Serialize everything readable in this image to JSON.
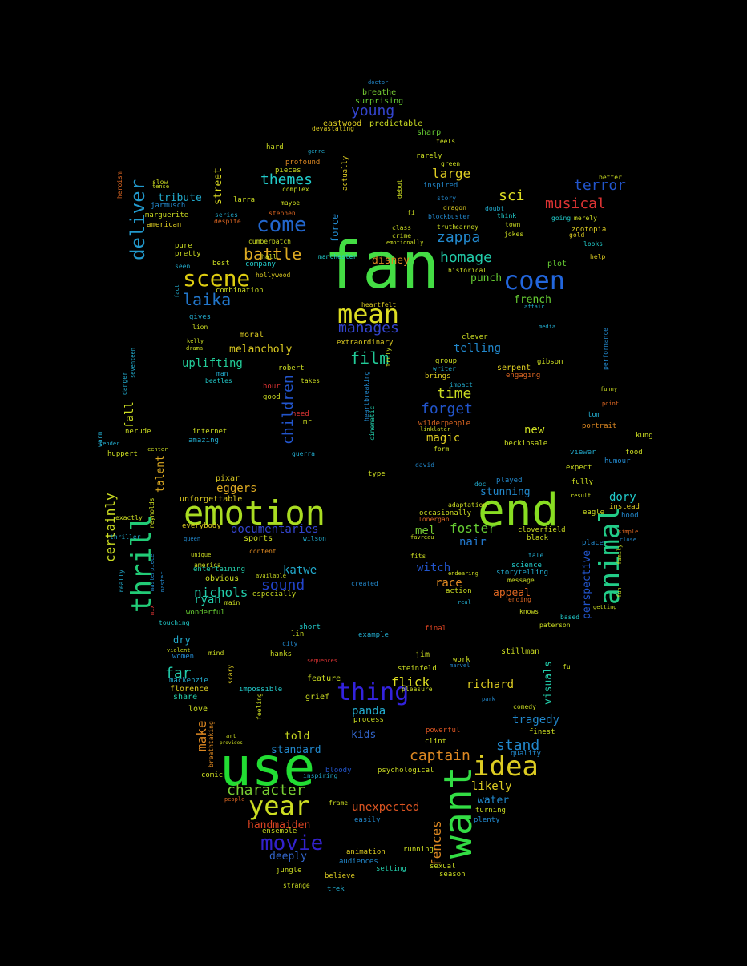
{
  "words": [
    {
      "text": "fan",
      "color": "#44dd44"
    },
    {
      "text": "use",
      "color": "#22dd33"
    },
    {
      "text": "emotion",
      "color": "#aadd22"
    },
    {
      "text": "end",
      "color": "#88dd22"
    },
    {
      "text": "want",
      "color": "#33dd44"
    },
    {
      "text": "idea",
      "color": "#ddcc22"
    },
    {
      "text": "thrill",
      "color": "#22cc77"
    },
    {
      "text": "animal",
      "color": "#22cc88"
    },
    {
      "text": "mean",
      "color": "#dddd22"
    },
    {
      "text": "coen",
      "color": "#2266dd"
    },
    {
      "text": "thing",
      "color": "#3322dd"
    },
    {
      "text": "year",
      "color": "#ccdd22"
    },
    {
      "text": "movie",
      "color": "#3322cc"
    },
    {
      "text": "scene",
      "color": "#ddcc11"
    },
    {
      "text": "come",
      "color": "#2266cc"
    },
    {
      "text": "deliver",
      "color": "#2299cc"
    },
    {
      "text": "character",
      "color": "#77cc33"
    },
    {
      "text": "film",
      "color": "#22cc99"
    },
    {
      "text": "battle",
      "color": "#ddaa22"
    },
    {
      "text": "laika",
      "color": "#2277cc"
    },
    {
      "text": "manages",
      "color": "#3344cc"
    },
    {
      "text": "themes",
      "color": "#22cccc"
    },
    {
      "text": "musical",
      "color": "#dd3333"
    },
    {
      "text": "terror",
      "color": "#2255cc"
    },
    {
      "text": "homage",
      "color": "#22ccaa"
    },
    {
      "text": "zappa",
      "color": "#2288cc"
    },
    {
      "text": "sci",
      "color": "#dddd22"
    },
    {
      "text": "large",
      "color": "#ddcc22"
    },
    {
      "text": "young",
      "color": "#3344cc"
    },
    {
      "text": "forget",
      "color": "#2255cc"
    },
    {
      "text": "time",
      "color": "#ccdd22"
    },
    {
      "text": "children",
      "color": "#2255cc"
    },
    {
      "text": "captain",
      "color": "#dd8822"
    },
    {
      "text": "stand",
      "color": "#2288cc"
    },
    {
      "text": "sound",
      "color": "#2244cc"
    },
    {
      "text": "nichols",
      "color": "#22ccaa"
    },
    {
      "text": "documentaries",
      "color": "#3344cc"
    },
    {
      "text": "fences",
      "color": "#dd8822"
    },
    {
      "text": "foster",
      "color": "#66cc33"
    },
    {
      "text": "certainly",
      "color": "#ccdd22"
    },
    {
      "text": "tragedy",
      "color": "#2288cc"
    },
    {
      "text": "handmaiden",
      "color": "#dd4422"
    },
    {
      "text": "unexpected",
      "color": "#dd5522"
    },
    {
      "text": "melancholy",
      "color": "#ddcc22"
    },
    {
      "text": "uplifting",
      "color": "#22cc99"
    },
    {
      "text": "telling",
      "color": "#2288cc"
    },
    {
      "text": "flick",
      "color": "#dddd22"
    },
    {
      "text": "richard",
      "color": "#ddcc22"
    },
    {
      "text": "eggers",
      "color": "#ddaa22"
    },
    {
      "text": "likely",
      "color": "#ddcc22"
    },
    {
      "text": "panda",
      "color": "#22aacc"
    },
    {
      "text": "water",
      "color": "#2288cc"
    },
    {
      "text": "deeply",
      "color": "#3366cc"
    },
    {
      "text": "make",
      "color": "#dd8822"
    },
    {
      "text": "far",
      "color": "#22ccaa"
    },
    {
      "text": "dory",
      "color": "#22cccc"
    },
    {
      "text": "perspective",
      "color": "#2255cc"
    },
    {
      "text": "magic",
      "color": "#ddcc22"
    },
    {
      "text": "new",
      "color": "#ccdd22"
    },
    {
      "text": "witch",
      "color": "#2255cc"
    },
    {
      "text": "race",
      "color": "#dd8822"
    },
    {
      "text": "appeal",
      "color": "#dd6622"
    },
    {
      "text": "nair",
      "color": "#2277cc"
    },
    {
      "text": "mel",
      "color": "#77cc33"
    },
    {
      "text": "katwe",
      "color": "#22aacc"
    },
    {
      "text": "ryan",
      "color": "#22ccaa"
    },
    {
      "text": "kids",
      "color": "#3366cc"
    },
    {
      "text": "told",
      "color": "#ccdd22"
    },
    {
      "text": "standard",
      "color": "#2288cc"
    },
    {
      "text": "disney",
      "color": "#dd8822"
    },
    {
      "text": "punch",
      "color": "#66cc33"
    },
    {
      "text": "french",
      "color": "#66cc33"
    },
    {
      "text": "fall",
      "color": "#ccdd22"
    },
    {
      "text": "talent",
      "color": "#ddaa22"
    },
    {
      "text": "street",
      "color": "#dddd22"
    },
    {
      "text": "tribute",
      "color": "#22aacc"
    },
    {
      "text": "visuals",
      "color": "#22ccaa"
    },
    {
      "text": "stunning",
      "color": "#2288cc"
    },
    {
      "text": "breathe",
      "color": "#77cc33"
    },
    {
      "text": "surprising",
      "color": "#66cc33"
    },
    {
      "text": "eastwood",
      "color": "#ddcc22"
    },
    {
      "text": "predictable",
      "color": "#ccdd22"
    },
    {
      "text": "sharp",
      "color": "#66cc33"
    },
    {
      "text": "force",
      "color": "#2288cc"
    },
    {
      "text": "zootopia",
      "color": "#ddcc22"
    },
    {
      "text": "plot",
      "color": "#66cc33"
    },
    {
      "text": "serpent",
      "color": "#ddcc22"
    },
    {
      "text": "extraordinary",
      "color": "#ddcc22"
    },
    {
      "text": "moral",
      "color": "#ddcc22"
    },
    {
      "text": "pixar",
      "color": "#ddcc22"
    },
    {
      "text": "unforgettable",
      "color": "#ddcc22"
    },
    {
      "text": "everybody",
      "color": "#ddcc22"
    },
    {
      "text": "sports",
      "color": "#ccdd22"
    },
    {
      "text": "entertaining",
      "color": "#22ccaa"
    },
    {
      "text": "obvious",
      "color": "#ccdd22"
    },
    {
      "text": "especially",
      "color": "#ccdd22"
    },
    {
      "text": "wonderful",
      "color": "#66cc33"
    },
    {
      "text": "dry",
      "color": "#22aacc"
    },
    {
      "text": "women",
      "color": "#2288cc"
    },
    {
      "text": "florence",
      "color": "#ddcc22"
    },
    {
      "text": "mackenzie",
      "color": "#22aacc"
    },
    {
      "text": "share",
      "color": "#22ccaa"
    },
    {
      "text": "love",
      "color": "#ccdd22"
    },
    {
      "text": "impossible",
      "color": "#22cccc"
    },
    {
      "text": "grief",
      "color": "#ccdd22"
    },
    {
      "text": "feature",
      "color": "#ccdd22"
    },
    {
      "text": "steinfeld",
      "color": "#ccdd22"
    },
    {
      "text": "stillman",
      "color": "#ccdd22"
    },
    {
      "text": "hanks",
      "color": "#ccdd22"
    },
    {
      "text": "jim",
      "color": "#ccdd22"
    },
    {
      "text": "action",
      "color": "#ccdd22"
    },
    {
      "text": "storytelling",
      "color": "#22aacc"
    },
    {
      "text": "science",
      "color": "#22cccc"
    },
    {
      "text": "cloverfield",
      "color": "#ccdd22"
    },
    {
      "text": "black",
      "color": "#ccdd22"
    },
    {
      "text": "beckinsale",
      "color": "#ccdd22"
    },
    {
      "text": "viewer",
      "color": "#22aacc"
    },
    {
      "text": "kung",
      "color": "#ccdd22"
    },
    {
      "text": "food",
      "color": "#ccdd22"
    },
    {
      "text": "instead",
      "color": "#ddcc22"
    },
    {
      "text": "hood",
      "color": "#2288cc"
    },
    {
      "text": "eagle",
      "color": "#ccdd22"
    },
    {
      "text": "place",
      "color": "#2288cc"
    },
    {
      "text": "humour",
      "color": "#2288cc"
    },
    {
      "text": "expect",
      "color": "#ccdd22"
    },
    {
      "text": "fully",
      "color": "#ccdd22"
    },
    {
      "text": "played",
      "color": "#2288cc"
    },
    {
      "text": "tom",
      "color": "#22aacc"
    },
    {
      "text": "portrait",
      "color": "#dd8822"
    },
    {
      "text": "clint",
      "color": "#ccdd22"
    },
    {
      "text": "quality",
      "color": "#2288cc"
    },
    {
      "text": "finest",
      "color": "#ccdd22"
    },
    {
      "text": "turning",
      "color": "#ccdd22"
    },
    {
      "text": "plenty",
      "color": "#2288cc"
    },
    {
      "text": "animation",
      "color": "#ddcc22"
    },
    {
      "text": "audiences",
      "color": "#2288cc"
    },
    {
      "text": "setting",
      "color": "#22ccaa"
    },
    {
      "text": "running",
      "color": "#ccdd22"
    },
    {
      "text": "sexual",
      "color": "#ccdd22"
    },
    {
      "text": "season",
      "color": "#ccdd22"
    },
    {
      "text": "jungle",
      "color": "#ccdd22"
    },
    {
      "text": "believe",
      "color": "#ddcc22"
    },
    {
      "text": "strange",
      "color": "#ccdd22"
    },
    {
      "text": "trek",
      "color": "#22aacc"
    },
    {
      "text": "ensemble",
      "color": "#ccdd22"
    },
    {
      "text": "easily",
      "color": "#2288cc"
    },
    {
      "text": "psychological",
      "color": "#ccdd22"
    },
    {
      "text": "inspiring",
      "color": "#22aacc"
    },
    {
      "text": "comic",
      "color": "#ccdd22"
    },
    {
      "text": "bloody",
      "color": "#2255cc"
    },
    {
      "text": "process",
      "color": "#ccdd22"
    },
    {
      "text": "powerful",
      "color": "#dd5522"
    },
    {
      "text": "frame",
      "color": "#ccdd22"
    },
    {
      "text": "sequences",
      "color": "#dd3333"
    },
    {
      "text": "lin",
      "color": "#ccdd22"
    },
    {
      "text": "short",
      "color": "#22cccc"
    },
    {
      "text": "example",
      "color": "#22aacc"
    },
    {
      "text": "final",
      "color": "#dd4422"
    },
    {
      "text": "work",
      "color": "#ccdd22"
    },
    {
      "text": "hall",
      "color": "#ccdd22"
    },
    {
      "text": "amazing",
      "color": "#22aacc"
    },
    {
      "text": "nerude",
      "color": "#ccdd22"
    },
    {
      "text": "huppert",
      "color": "#ccdd22"
    },
    {
      "text": "internet",
      "color": "#ccdd22"
    },
    {
      "text": "guerra",
      "color": "#22aacc"
    },
    {
      "text": "mr",
      "color": "#ccdd22"
    },
    {
      "text": "need",
      "color": "#dd3333"
    },
    {
      "text": "good",
      "color": "#ccdd22"
    },
    {
      "text": "hour",
      "color": "#dd3333"
    },
    {
      "text": "robert",
      "color": "#ccdd22"
    },
    {
      "text": "takes",
      "color": "#ccdd22"
    },
    {
      "text": "group",
      "color": "#ccdd22"
    },
    {
      "text": "writer",
      "color": "#22aacc"
    },
    {
      "text": "brings",
      "color": "#ddcc22"
    },
    {
      "text": "impact",
      "color": "#22aacc"
    },
    {
      "text": "wilderpeople",
      "color": "#dd6622"
    },
    {
      "text": "clever",
      "color": "#ccdd22"
    },
    {
      "text": "engaging",
      "color": "#dd6622"
    },
    {
      "text": "gibson",
      "color": "#ccdd22"
    },
    {
      "text": "amazing2",
      "color": "#22aacc"
    },
    {
      "text": "man",
      "color": "#22aacc"
    },
    {
      "text": "beatles",
      "color": "#22cccc"
    },
    {
      "text": "kelly",
      "color": "#ccdd22"
    },
    {
      "text": "drama",
      "color": "#ccdd22"
    },
    {
      "text": "lion",
      "color": "#ccdd22"
    },
    {
      "text": "gives",
      "color": "#22aacc"
    },
    {
      "text": "combination",
      "color": "#ccdd22"
    },
    {
      "text": "hollywood",
      "color": "#ddcc22"
    },
    {
      "text": "company",
      "color": "#22cccc"
    },
    {
      "text": "cumberbatch",
      "color": "#ccdd22"
    },
    {
      "text": "pretty",
      "color": "#ccdd22"
    },
    {
      "text": "pure",
      "color": "#ccdd22"
    },
    {
      "text": "best",
      "color": "#ccdd22"
    },
    {
      "text": "marguerite",
      "color": "#ccdd22"
    },
    {
      "text": "american",
      "color": "#ddcc22"
    },
    {
      "text": "jarmusch",
      "color": "#2288cc"
    },
    {
      "text": "series",
      "color": "#22aacc"
    },
    {
      "text": "despite",
      "color": "#dd6622"
    },
    {
      "text": "larra",
      "color": "#ccdd22"
    },
    {
      "text": "maybe",
      "color": "#ccdd22"
    },
    {
      "text": "stephen",
      "color": "#dd6622"
    },
    {
      "text": "complex",
      "color": "#ccdd22"
    },
    {
      "text": "pieces",
      "color": "#ccdd22"
    },
    {
      "text": "profound",
      "color": "#dd8822"
    },
    {
      "text": "hard",
      "color": "#ccdd22"
    },
    {
      "text": "devastating",
      "color": "#ddcc22"
    },
    {
      "text": "rarely",
      "color": "#ccdd22"
    },
    {
      "text": "green",
      "color": "#ccdd22"
    },
    {
      "text": "inspired",
      "color": "#2288cc"
    },
    {
      "text": "story",
      "color": "#2288cc"
    },
    {
      "text": "dragon",
      "color": "#ddcc22"
    },
    {
      "text": "blockbuster",
      "color": "#2288cc"
    },
    {
      "text": "class",
      "color": "#ccdd22"
    },
    {
      "text": "crime",
      "color": "#ccdd22"
    },
    {
      "text": "truth",
      "color": "#ccdd22"
    },
    {
      "text": "carney",
      "color": "#ccdd22"
    },
    {
      "text": "doubt",
      "color": "#22aacc"
    },
    {
      "text": "think",
      "color": "#22cccc"
    },
    {
      "text": "town",
      "color": "#ccdd22"
    },
    {
      "text": "jokes",
      "color": "#ccdd22"
    },
    {
      "text": "manchester",
      "color": "#22cccc"
    },
    {
      "text": "historical",
      "color": "#ccdd22"
    },
    {
      "text": "heartfelt",
      "color": "#ddcc22"
    },
    {
      "text": "going",
      "color": "#22cccc"
    },
    {
      "text": "merely",
      "color": "#ccdd22"
    },
    {
      "text": "gold",
      "color": "#ddcc22"
    },
    {
      "text": "looks",
      "color": "#22cccc"
    },
    {
      "text": "help",
      "color": "#ddcc22"
    },
    {
      "text": "better",
      "color": "#ccdd22"
    },
    {
      "text": "occasionally",
      "color": "#ccdd22"
    },
    {
      "text": "adaptation",
      "color": "#ccdd22"
    },
    {
      "text": "type",
      "color": "#ccdd22"
    },
    {
      "text": "david",
      "color": "#2288cc"
    },
    {
      "text": "form",
      "color": "#ccdd22"
    },
    {
      "text": "linklater",
      "color": "#ccdd22"
    },
    {
      "text": "fits",
      "color": "#ccdd22"
    },
    {
      "text": "favreau",
      "color": "#ccdd22"
    },
    {
      "text": "lonergan",
      "color": "#dd6622"
    },
    {
      "text": "endearing",
      "color": "#ccdd22"
    },
    {
      "text": "created",
      "color": "#2288cc"
    },
    {
      "text": "tale",
      "color": "#22aacc"
    },
    {
      "text": "message",
      "color": "#ccdd22"
    },
    {
      "text": "ending",
      "color": "#dd6622"
    },
    {
      "text": "knows",
      "color": "#ccdd22"
    },
    {
      "text": "paterson",
      "color": "#ccdd22"
    },
    {
      "text": "marvel",
      "color": "#2288cc"
    },
    {
      "text": "pleasure",
      "color": "#ccdd22"
    },
    {
      "text": "park",
      "color": "#2288cc"
    },
    {
      "text": "comedy",
      "color": "#ccdd22"
    },
    {
      "text": "fu",
      "color": "#ccdd22"
    },
    {
      "text": "based",
      "color": "#22cccc"
    },
    {
      "text": "available",
      "color": "#ccdd22"
    },
    {
      "text": "america",
      "color": "#ccdd22"
    },
    {
      "text": "main",
      "color": "#ccdd22"
    },
    {
      "text": "touching",
      "color": "#22cccc"
    },
    {
      "text": "queen",
      "color": "#2288cc"
    },
    {
      "text": "content",
      "color": "#dd8822"
    },
    {
      "text": "wilson",
      "color": "#22aacc"
    },
    {
      "text": "exactly",
      "color": "#ccdd22"
    },
    {
      "text": "thriller",
      "color": "#22aacc"
    },
    {
      "text": "really",
      "color": "#22aacc"
    },
    {
      "text": "violent",
      "color": "#ccdd22"
    },
    {
      "text": "mind",
      "color": "#ccdd22"
    },
    {
      "text": "city",
      "color": "#2288cc"
    },
    {
      "text": "art",
      "color": "#ccdd22"
    },
    {
      "text": "provides",
      "color": "#ccdd22"
    },
    {
      "text": "people",
      "color": "#dd6622"
    },
    {
      "text": "tender",
      "color": "#22aacc"
    },
    {
      "text": "warm",
      "color": "#22aacc"
    },
    {
      "text": "danger",
      "color": "#22aacc"
    },
    {
      "text": "seventeen",
      "color": "#22aacc"
    },
    {
      "text": "heroism",
      "color": "#dd6622"
    },
    {
      "text": "slow",
      "color": "#ccdd22"
    },
    {
      "text": "tense",
      "color": "#ccdd22"
    },
    {
      "text": "seen",
      "color": "#22aacc"
    },
    {
      "text": "genre",
      "color": "#22aacc"
    },
    {
      "text": "feels",
      "color": "#ccdd22"
    },
    {
      "text": "debut",
      "color": "#ccdd22"
    },
    {
      "text": "fi",
      "color": "#ccdd22"
    },
    {
      "text": "actually",
      "color": "#ddcc22"
    },
    {
      "text": "emotionally",
      "color": "#ccdd22"
    },
    {
      "text": "media",
      "color": "#22aacc"
    },
    {
      "text": "affair",
      "color": "#22aacc"
    },
    {
      "text": "cinematic",
      "color": "#22ccaa"
    },
    {
      "text": "heartbreaking",
      "color": "#2288cc"
    },
    {
      "text": "fact",
      "color": "#22aacc"
    },
    {
      "text": "performance",
      "color": "#2288cc"
    },
    {
      "text": "funny",
      "color": "#ccdd22"
    },
    {
      "text": "point",
      "color": "#dd6622"
    },
    {
      "text": "result",
      "color": "#ccdd22"
    },
    {
      "text": "doc",
      "color": "#22aacc"
    },
    {
      "text": "real",
      "color": "#22aacc"
    },
    {
      "text": "doctor",
      "color": "#2288cc"
    },
    {
      "text": "master",
      "color": "#2288cc"
    },
    {
      "text": "breathtaking",
      "color": "#dd8822"
    },
    {
      "text": "feeling",
      "color": "#ccdd22"
    },
    {
      "text": "scary",
      "color": "#ddcc22"
    },
    {
      "text": "masterpiece",
      "color": "#2288cc"
    },
    {
      "text": "reynolds",
      "color": "#ccdd22"
    },
    {
      "text": "mix",
      "color": "#dd3333"
    },
    {
      "text": "truly",
      "color": "#ccdd22"
    },
    {
      "text": "unique",
      "color": "#ccdd22"
    },
    {
      "text": "simple",
      "color": "#dd6622"
    },
    {
      "text": "close",
      "color": "#2288cc"
    },
    {
      "text": "family",
      "color": "#ccdd22"
    },
    {
      "text": "fun",
      "color": "#ccdd22"
    },
    {
      "text": "getting",
      "color": "#ccdd22"
    },
    {
      "text": "center",
      "color": "#ccdd22"
    }
  ]
}
